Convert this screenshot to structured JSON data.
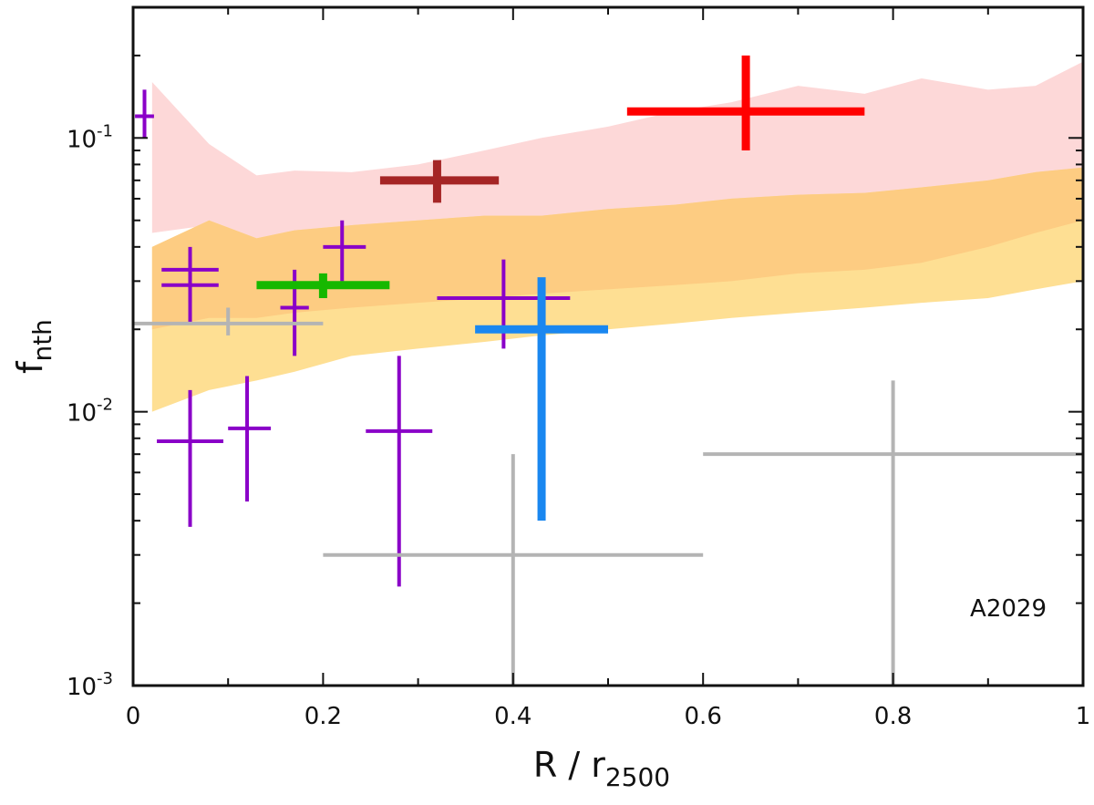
{
  "chart_data": {
    "type": "scatter",
    "title": "",
    "xlabel": "R / r",
    "xlabel_sub": "2500",
    "ylabel": "f",
    "ylabel_sub": "nth",
    "xlim": [
      0,
      1
    ],
    "ylim": [
      0.001,
      0.3
    ],
    "yscale": "log",
    "x_ticks": [
      {
        "value": 0,
        "label": "0"
      },
      {
        "value": 0.2,
        "label": "0.2"
      },
      {
        "value": 0.4,
        "label": "0.4"
      },
      {
        "value": 0.6,
        "label": "0.6"
      },
      {
        "value": 0.8,
        "label": "0.8"
      },
      {
        "value": 1,
        "label": "1"
      }
    ],
    "y_ticks": [
      {
        "value": 0.001,
        "base": "10",
        "exp": "-3"
      },
      {
        "value": 0.01,
        "base": "10",
        "exp": "-2"
      },
      {
        "value": 0.1,
        "base": "10",
        "exp": "-1"
      }
    ],
    "annotation": "A2029",
    "colors": {
      "purple": "#8a00c8",
      "gray": "#b4b4b4",
      "green": "#16b800",
      "darkred": "#a52525",
      "red": "#ff0000",
      "blue": "#1a87f0",
      "band_pink": "#fdd8d8",
      "band_orange": "#fdcc82",
      "band_yellow": "#fedf93"
    },
    "bands": [
      {
        "name": "pink band",
        "color": "#fdd8d8",
        "x": [
          0.02,
          0.08,
          0.13,
          0.17,
          0.23,
          0.3,
          0.37,
          0.43,
          0.5,
          0.57,
          0.63,
          0.7,
          0.77,
          0.83,
          0.9,
          0.95,
          1.0
        ],
        "upper": [
          0.16,
          0.095,
          0.073,
          0.076,
          0.075,
          0.08,
          0.09,
          0.1,
          0.11,
          0.125,
          0.135,
          0.155,
          0.145,
          0.165,
          0.15,
          0.155,
          0.19
        ],
        "lower": [
          0.045,
          0.048,
          0.043,
          0.04,
          0.042,
          0.045,
          0.048,
          0.05,
          0.052,
          0.055,
          0.058,
          0.06,
          0.062,
          0.065,
          0.068,
          0.07,
          0.075
        ]
      },
      {
        "name": "yellow band",
        "color": "#fedf93",
        "x": [
          0.02,
          0.08,
          0.13,
          0.17,
          0.23,
          0.3,
          0.37,
          0.43,
          0.5,
          0.57,
          0.63,
          0.7,
          0.77,
          0.83,
          0.9,
          0.95,
          1.0
        ],
        "upper": [
          0.04,
          0.05,
          0.043,
          0.046,
          0.048,
          0.05,
          0.052,
          0.052,
          0.055,
          0.057,
          0.06,
          0.062,
          0.063,
          0.066,
          0.07,
          0.075,
          0.078
        ],
        "lower": [
          0.01,
          0.012,
          0.013,
          0.014,
          0.016,
          0.017,
          0.018,
          0.019,
          0.02,
          0.021,
          0.022,
          0.023,
          0.024,
          0.025,
          0.026,
          0.028,
          0.03
        ]
      },
      {
        "name": "orange band",
        "color": "#fdcc82",
        "x": [
          0.02,
          0.08,
          0.13,
          0.17,
          0.23,
          0.3,
          0.37,
          0.43,
          0.5,
          0.57,
          0.63,
          0.7,
          0.77,
          0.83,
          0.9,
          0.95,
          1.0
        ],
        "upper": [
          0.04,
          0.05,
          0.043,
          0.046,
          0.048,
          0.05,
          0.052,
          0.052,
          0.055,
          0.057,
          0.06,
          0.062,
          0.063,
          0.066,
          0.07,
          0.075,
          0.078
        ],
        "lower": [
          0.02,
          0.022,
          0.022,
          0.023,
          0.024,
          0.025,
          0.026,
          0.027,
          0.028,
          0.029,
          0.03,
          0.032,
          0.033,
          0.035,
          0.04,
          0.045,
          0.05
        ]
      }
    ],
    "series": [
      {
        "name": "purple",
        "color": "#8a00c8",
        "width": 4,
        "points": [
          {
            "x": 0.012,
            "y": 0.12,
            "xerr": [
              0.01,
              0.01
            ],
            "yerr": [
              0.1,
              0.15
            ]
          },
          {
            "x": 0.06,
            "y": 0.033,
            "xerr": [
              0.03,
              0.03
            ],
            "yerr": [
              0.025,
              0.04
            ]
          },
          {
            "x": 0.06,
            "y": 0.029,
            "xerr": [
              0.03,
              0.03
            ],
            "yerr": [
              0.021,
              0.036
            ]
          },
          {
            "x": 0.06,
            "y": 0.0078,
            "xerr": [
              0.035,
              0.035
            ],
            "yerr": [
              0.0038,
              0.012
            ]
          },
          {
            "x": 0.12,
            "y": 0.0087,
            "xerr": [
              0.02,
              0.025
            ],
            "yerr": [
              0.0047,
              0.0135
            ]
          },
          {
            "x": 0.17,
            "y": 0.024,
            "xerr": [
              0.015,
              0.015
            ],
            "yerr": [
              0.016,
              0.033
            ]
          },
          {
            "x": 0.22,
            "y": 0.04,
            "xerr": [
              0.02,
              0.025
            ],
            "yerr": [
              0.03,
              0.05
            ]
          },
          {
            "x": 0.28,
            "y": 0.0085,
            "xerr": [
              0.035,
              0.035
            ],
            "yerr": [
              0.0023,
              0.016
            ]
          },
          {
            "x": 0.39,
            "y": 0.026,
            "xerr": [
              0.07,
              0.07
            ],
            "yerr": [
              0.017,
              0.036
            ]
          }
        ]
      },
      {
        "name": "gray",
        "color": "#b4b4b4",
        "width": 4,
        "points": [
          {
            "x": 0.1,
            "y": 0.021,
            "xerr": [
              0.1,
              0.1
            ],
            "yerr": [
              0.019,
              0.024
            ]
          },
          {
            "x": 0.4,
            "y": 0.003,
            "xerr": [
              0.2,
              0.2
            ],
            "yerr": [
              0.001,
              0.007
            ]
          },
          {
            "x": 0.8,
            "y": 0.007,
            "xerr": [
              0.2,
              0.2
            ],
            "yerr": [
              0.001,
              0.013
            ]
          }
        ]
      },
      {
        "name": "green",
        "color": "#16b800",
        "width": 9,
        "points": [
          {
            "x": 0.2,
            "y": 0.029,
            "xerr": [
              0.07,
              0.07
            ],
            "yerr": [
              0.026,
              0.032
            ]
          }
        ]
      },
      {
        "name": "darkred",
        "color": "#a52525",
        "width": 9,
        "points": [
          {
            "x": 0.32,
            "y": 0.07,
            "xerr": [
              0.06,
              0.065
            ],
            "yerr": [
              0.058,
              0.083
            ]
          }
        ]
      },
      {
        "name": "red",
        "color": "#ff0000",
        "width": 9,
        "points": [
          {
            "x": 0.645,
            "y": 0.125,
            "xerr": [
              0.125,
              0.125
            ],
            "yerr": [
              0.09,
              0.2
            ]
          }
        ]
      },
      {
        "name": "blue",
        "color": "#1a87f0",
        "width": 9,
        "points": [
          {
            "x": 0.43,
            "y": 0.02,
            "xerr": [
              0.07,
              0.07
            ],
            "yerr": [
              0.004,
              0.031
            ]
          }
        ]
      }
    ]
  }
}
